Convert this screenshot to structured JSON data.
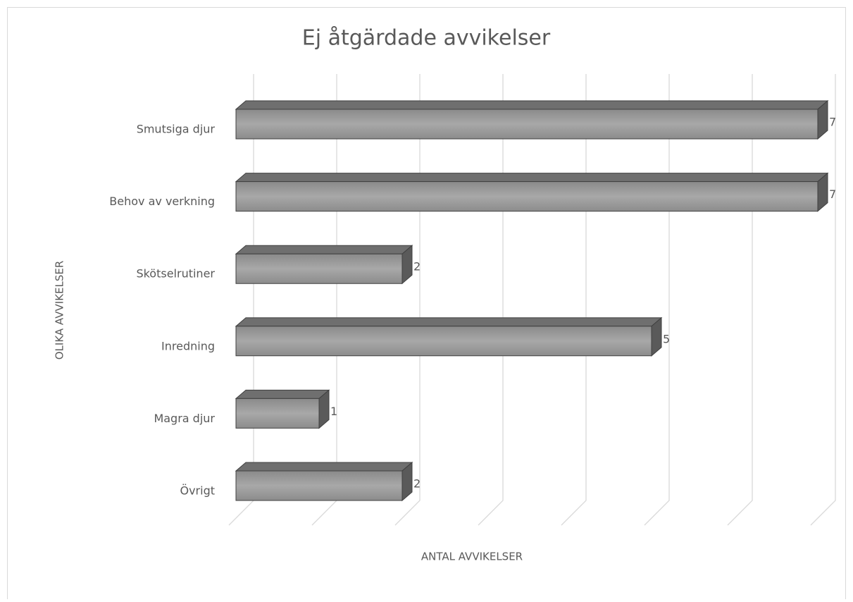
{
  "chart_data": {
    "type": "bar3d",
    "orientation": "horizontal",
    "title": "Ej åtgärdade avvikelser",
    "x_label": "ANTAL AVVIKELSER",
    "y_label": "OLIKA AVVIKELSER",
    "categories": [
      "Smutsiga djur",
      "Behov av verkning",
      "Skötselrutiner",
      "Inredning",
      "Magra djur",
      "Övrigt"
    ],
    "values": [
      7,
      7,
      2,
      5,
      1,
      2
    ],
    "color": "#999999",
    "xlim": [
      0,
      7
    ],
    "xticks": [
      0,
      1,
      2,
      3,
      4,
      5,
      6,
      7
    ],
    "grid": true
  }
}
